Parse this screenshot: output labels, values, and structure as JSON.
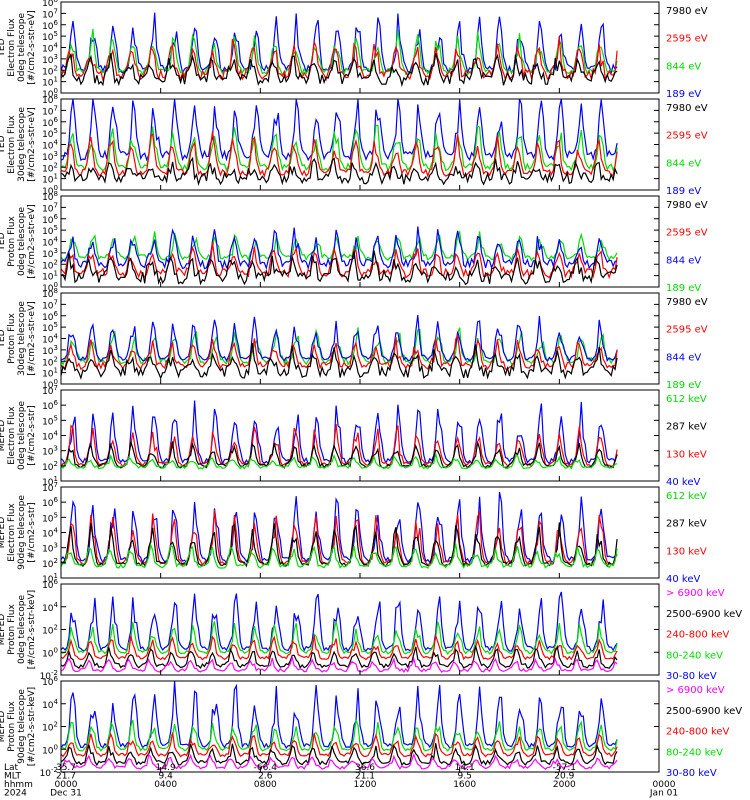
{
  "chart_data": [
    {
      "type": "line",
      "ylabel": [
        "TED",
        "Electron Flux",
        "0deg telescope",
        "[#/cm2-s-str-eV]"
      ],
      "ylog": true,
      "ylim_exp": [
        0,
        8
      ],
      "yticks": [
        "10^0",
        "10^1",
        "10^2",
        "10^3",
        "10^4",
        "10^5",
        "10^6",
        "10^7",
        "10^8"
      ],
      "series": [
        {
          "name": "7980 eV",
          "color": "#000000",
          "base": 1.2,
          "amp": 1.6,
          "noise": 1.1
        },
        {
          "name": "2595 eV",
          "color": "#ff0000",
          "base": 1.6,
          "amp": 2.4,
          "noise": 0.9
        },
        {
          "name": "844 eV",
          "color": "#00dd00",
          "base": 1.9,
          "amp": 2.6,
          "noise": 0.6
        },
        {
          "name": "189 eV",
          "color": "#0000ff",
          "base": 2.1,
          "amp": 3.6,
          "noise": 0.7
        }
      ]
    },
    {
      "type": "line",
      "ylabel": [
        "TED",
        "Electron Flux",
        "30deg telescope",
        "[#/cm2-s-str-eV]"
      ],
      "ylog": true,
      "ylim_exp": [
        0,
        8
      ],
      "yticks": [
        "10^0",
        "10^1",
        "10^2",
        "10^3",
        "10^4",
        "10^5",
        "10^6",
        "10^7",
        "10^8"
      ],
      "series": [
        {
          "name": "7980 eV",
          "color": "#000000",
          "base": 1.0,
          "amp": 1.2,
          "noise": 1.0
        },
        {
          "name": "2595 eV",
          "color": "#ff0000",
          "base": 1.5,
          "amp": 2.6,
          "noise": 0.6
        },
        {
          "name": "844 eV",
          "color": "#00dd00",
          "base": 2.0,
          "amp": 3.0,
          "noise": 0.6
        },
        {
          "name": "189 eV",
          "color": "#0000ff",
          "base": 3.0,
          "amp": 4.0,
          "noise": 0.8
        }
      ]
    },
    {
      "type": "line",
      "ylabel": [
        "TED",
        "Proton Flux",
        "0deg telescope",
        "[#/cm2-s-str-eV]"
      ],
      "ylog": true,
      "ylim_exp": [
        0,
        8
      ],
      "yticks": [
        "10^0",
        "10^1",
        "10^2",
        "10^3",
        "10^4",
        "10^5",
        "10^6",
        "10^7",
        "10^8"
      ],
      "series": [
        {
          "name": "7980 eV",
          "color": "#000000",
          "base": 0.8,
          "amp": 1.6,
          "noise": 1.2
        },
        {
          "name": "2595 eV",
          "color": "#ff0000",
          "base": 1.2,
          "amp": 1.8,
          "noise": 0.8
        },
        {
          "name": "844 eV",
          "color": "#0000ff",
          "base": 2.0,
          "amp": 2.4,
          "noise": 0.8
        },
        {
          "name": "189 eV",
          "color": "#00dd00",
          "base": 2.6,
          "amp": 1.6,
          "noise": 0.5
        }
      ]
    },
    {
      "type": "line",
      "ylabel": [
        "TED",
        "Proton Flux",
        "30deg telescope",
        "[#/cm2-s-str-eV]"
      ],
      "ylog": true,
      "ylim_exp": [
        0,
        8
      ],
      "yticks": [
        "10^0",
        "10^1",
        "10^2",
        "10^3",
        "10^4",
        "10^5",
        "10^6",
        "10^7",
        "10^8"
      ],
      "series": [
        {
          "name": "7980 eV",
          "color": "#000000",
          "base": 1.0,
          "amp": 1.6,
          "noise": 1.0
        },
        {
          "name": "2595 eV",
          "color": "#ff0000",
          "base": 1.6,
          "amp": 1.8,
          "noise": 0.6
        },
        {
          "name": "844 eV",
          "color": "#0000ff",
          "base": 2.2,
          "amp": 2.8,
          "noise": 0.4
        },
        {
          "name": "189 eV",
          "color": "#00dd00",
          "base": 2.0,
          "amp": 2.2,
          "noise": 0.6
        }
      ]
    },
    {
      "type": "line",
      "ylabel": [
        "MEPED",
        "Electron Flux",
        "0deg telescope",
        "[#/cm2-s-str]"
      ],
      "ylog": true,
      "ylim_exp": [
        1,
        7
      ],
      "yticks": [
        "10^1",
        "10^2",
        "10^3",
        "10^4",
        "10^5",
        "10^6",
        "10^7"
      ],
      "series": [
        {
          "name": "612 keV",
          "color": "#00dd00",
          "base": 1.9,
          "amp": 0.6,
          "noise": 0.2
        },
        {
          "name": "287 keV",
          "color": "#000000",
          "base": 2.0,
          "amp": 1.2,
          "noise": 0.3
        },
        {
          "name": "130 keV",
          "color": "#ff0000",
          "base": 2.1,
          "amp": 2.0,
          "noise": 0.3
        },
        {
          "name": "40 keV",
          "color": "#0000ff",
          "base": 2.3,
          "amp": 3.0,
          "noise": 0.4
        }
      ]
    },
    {
      "type": "line",
      "ylabel": [
        "MEPED",
        "Electron Flux",
        "90deg telescope",
        "[#/cm2-s-str]"
      ],
      "ylog": true,
      "ylim_exp": [
        1,
        7
      ],
      "yticks": [
        "10^1",
        "10^2",
        "10^3",
        "10^4",
        "10^5",
        "10^6",
        "10^7"
      ],
      "series": [
        {
          "name": "612 keV",
          "color": "#00dd00",
          "base": 1.8,
          "amp": 1.0,
          "noise": 0.3
        },
        {
          "name": "287 keV",
          "color": "#000000",
          "base": 1.9,
          "amp": 2.0,
          "noise": 0.3
        },
        {
          "name": "130 keV",
          "color": "#ff0000",
          "base": 2.0,
          "amp": 2.6,
          "noise": 0.3
        },
        {
          "name": "40 keV",
          "color": "#0000ff",
          "base": 2.2,
          "amp": 3.4,
          "noise": 0.4
        }
      ]
    },
    {
      "type": "line",
      "ylabel": [
        "MEPED",
        "Proton Flux",
        "0deg telescope",
        "[#/cm2-s-str-keV]"
      ],
      "ylog": true,
      "ylim_exp": [
        -2,
        6
      ],
      "yticks": [
        "10^-2",
        "10^0",
        "10^2",
        "10^4",
        "10^6"
      ],
      "series": [
        {
          "name": "> 6900 keV",
          "color": "#ff00ff",
          "base": -1.6,
          "amp": 0.8,
          "noise": 0.3
        },
        {
          "name": "2500-6900 keV",
          "color": "#000000",
          "base": -1.2,
          "amp": 1.2,
          "noise": 0.4
        },
        {
          "name": "240-800 keV",
          "color": "#ff0000",
          "base": -0.5,
          "amp": 1.4,
          "noise": 0.3
        },
        {
          "name": "80-240 keV",
          "color": "#00dd00",
          "base": 0.0,
          "amp": 2.0,
          "noise": 0.3
        },
        {
          "name": "30-80 keV",
          "color": "#0000ff",
          "base": 0.3,
          "amp": 4.0,
          "noise": 0.4
        }
      ]
    },
    {
      "type": "line",
      "ylabel": [
        "MEPED",
        "Proton Flux",
        "90deg telescope",
        "[#/cm2-s-str-keV]"
      ],
      "ylog": true,
      "ylim_exp": [
        -2,
        6
      ],
      "yticks": [
        "10^-2",
        "10^0",
        "10^2",
        "10^4",
        "10^6"
      ],
      "series": [
        {
          "name": "> 6900 keV",
          "color": "#ff00ff",
          "base": -1.6,
          "amp": 0.8,
          "noise": 0.3
        },
        {
          "name": "2500-6900 keV",
          "color": "#000000",
          "base": -1.2,
          "amp": 1.2,
          "noise": 0.4
        },
        {
          "name": "240-800 keV",
          "color": "#ff0000",
          "base": -0.5,
          "amp": 1.4,
          "noise": 0.3
        },
        {
          "name": "80-240 keV",
          "color": "#00dd00",
          "base": 0.0,
          "amp": 2.0,
          "noise": 0.3
        },
        {
          "name": "30-80 keV",
          "color": "#0000ff",
          "base": 0.3,
          "amp": 4.2,
          "noise": 0.4
        }
      ]
    }
  ],
  "time_axis": {
    "row_labels": [
      "Lat",
      "MLT",
      "hhmm",
      "2024"
    ],
    "ticks": [
      {
        "lat": "35.7",
        "mlt": "21.7",
        "hhmm": "0000",
        "date": "Dec 31"
      },
      {
        "lat": "14.9",
        "mlt": "9.4",
        "hhmm": "0400",
        "date": ""
      },
      {
        "lat": "-66.4",
        "mlt": "2.6",
        "hhmm": "0800",
        "date": ""
      },
      {
        "lat": "36.6",
        "mlt": "21.1",
        "hhmm": "1200",
        "date": ""
      },
      {
        "lat": "14.1",
        "mlt": "9.5",
        "hhmm": "1600",
        "date": ""
      },
      {
        "lat": "-57.1",
        "mlt": "20.9",
        "hhmm": "2000",
        "date": ""
      },
      {
        "lat": "",
        "mlt": "",
        "hhmm": "0000",
        "date": "Jan 01"
      }
    ]
  }
}
